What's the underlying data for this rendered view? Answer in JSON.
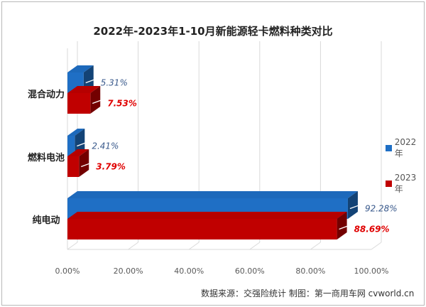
{
  "chart_data": {
    "type": "bar",
    "orientation": "horizontal",
    "three_d": true,
    "title": "2022年-2023年1-10月新能源轻卡燃料种类对比",
    "categories": [
      "混合动力",
      "燃料电池",
      "纯电动"
    ],
    "series": [
      {
        "name": "2022年",
        "values": [
          5.31,
          2.41,
          92.28
        ],
        "labels": [
          "5.31%",
          "2.41%",
          "92.28%"
        ],
        "color": "#1f6fc5",
        "label_color": "#3a5a8c"
      },
      {
        "name": "2023年",
        "values": [
          7.53,
          3.79,
          88.69
        ],
        "labels": [
          "7.53%",
          "3.79%",
          "88.69%"
        ],
        "color": "#c00000",
        "label_color": "#e00000"
      }
    ],
    "xlim": [
      0,
      100
    ],
    "x_ticks": [
      0,
      20,
      40,
      60,
      80,
      100
    ],
    "x_tick_labels": [
      "0.00%",
      "20.00%",
      "40.00%",
      "60.00%",
      "80.00%",
      "100.00%"
    ],
    "grid": true,
    "legend_position": "right"
  },
  "source_note": "数据来源：交强险统计 制图：第一商用车网 cvworld.cn"
}
